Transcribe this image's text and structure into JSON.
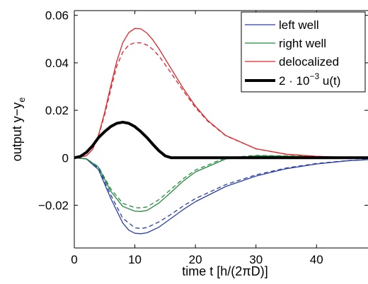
{
  "chart_data": {
    "type": "line",
    "xlabel_prefix": "time t [h/(2",
    "xlabel_pi": "π",
    "xlabel_suffix": "D)]",
    "ylabel_prefix": "output y",
    "ylabel_dash": "−",
    "ylabel_main": "y",
    "ylabel_sub": "e",
    "xlim": [
      0,
      48.5
    ],
    "ylim": [
      -0.038,
      0.062
    ],
    "xticks": [
      0,
      10,
      20,
      30,
      40
    ],
    "xtick_labels": [
      "0",
      "10",
      "20",
      "30",
      "40"
    ],
    "yticks": [
      -0.02,
      0,
      0.02,
      0.04,
      0.06
    ],
    "ytick_labels": [
      "−0.02",
      "0",
      "0.02",
      "0.04",
      "0.06"
    ],
    "grid": false,
    "legend_position": "top-right",
    "legend": {
      "left_well": "left well",
      "right_well": "right well",
      "delocalized": "delocalized",
      "control_prefix": "2 · 10",
      "control_exp": "−3",
      "control_suffix": " u(t)"
    },
    "series": [
      {
        "name": "left well",
        "color": "#2a3fa8",
        "style": "solid",
        "x": [
          0,
          2,
          4,
          6,
          8,
          9,
          10,
          11,
          12,
          14,
          16,
          18,
          20,
          25,
          30,
          35,
          40,
          45,
          48.5
        ],
        "y": [
          0,
          -0.0005,
          -0.005,
          -0.017,
          -0.0275,
          -0.0305,
          -0.0318,
          -0.032,
          -0.0316,
          -0.0292,
          -0.0255,
          -0.0218,
          -0.0185,
          -0.0121,
          -0.0077,
          -0.0046,
          -0.0026,
          -0.0013,
          -0.0008
        ]
      },
      {
        "name": "left well",
        "color": "#2a3fa8",
        "style": "dashed",
        "x": [
          0,
          2,
          4,
          6,
          8,
          10,
          11,
          12,
          14,
          16,
          18,
          20,
          25,
          30,
          35,
          40,
          45,
          48.5
        ],
        "y": [
          0,
          -0.0004,
          -0.0045,
          -0.0155,
          -0.0255,
          -0.0295,
          -0.0298,
          -0.0294,
          -0.027,
          -0.0238,
          -0.0203,
          -0.0172,
          -0.0113,
          -0.0072,
          -0.0043,
          -0.0024,
          -0.0012,
          -0.0007
        ]
      },
      {
        "name": "right well",
        "color": "#1f8a3b",
        "style": "solid",
        "x": [
          0,
          2,
          4,
          6,
          8,
          10,
          11,
          12,
          14,
          16,
          18,
          20,
          25,
          30,
          35,
          40,
          45,
          48.5
        ],
        "y": [
          0,
          -0.0004,
          -0.004,
          -0.014,
          -0.0205,
          -0.0225,
          -0.0226,
          -0.0222,
          -0.019,
          -0.0145,
          -0.0098,
          -0.006,
          -0.0005,
          0.0008,
          0.0007,
          0.0004,
          0.0002,
          0.0001
        ]
      },
      {
        "name": "right well",
        "color": "#1f8a3b",
        "style": "dashed",
        "x": [
          0,
          2,
          4,
          6,
          8,
          10,
          11,
          12,
          14,
          16,
          18,
          20,
          25,
          30,
          35,
          40,
          45,
          48.5
        ],
        "y": [
          0,
          -0.0004,
          -0.0038,
          -0.013,
          -0.0192,
          -0.021,
          -0.0211,
          -0.0207,
          -0.0176,
          -0.0132,
          -0.0088,
          -0.0052,
          0.0,
          0.001,
          0.0008,
          0.0005,
          0.0002,
          0.0001
        ]
      },
      {
        "name": "delocalized",
        "color": "#e0242a",
        "style": "solid",
        "x": [
          0,
          2,
          3,
          4,
          5,
          6,
          7,
          8,
          9,
          10,
          11,
          12,
          13,
          14,
          16,
          18,
          20,
          22,
          25,
          30,
          35,
          40,
          45,
          48.5
        ],
        "y": [
          0,
          0.0008,
          0.0035,
          0.0095,
          0.019,
          0.03,
          0.0405,
          0.0485,
          0.0527,
          0.0545,
          0.0543,
          0.0525,
          0.0496,
          0.0458,
          0.0375,
          0.0292,
          0.0218,
          0.0158,
          0.0094,
          0.0038,
          0.0015,
          0.0006,
          0.0002,
          0.0001
        ]
      },
      {
        "name": "delocalized",
        "color": "#e0242a",
        "style": "dashed",
        "x": [
          0,
          2,
          3,
          4,
          5,
          6,
          7,
          8,
          9,
          10,
          11,
          12,
          13,
          14,
          16,
          18,
          20,
          22,
          25,
          30,
          35,
          40,
          45,
          48.5
        ],
        "y": [
          0,
          0.0008,
          0.0035,
          0.0092,
          0.018,
          0.0285,
          0.0385,
          0.0445,
          0.0475,
          0.0485,
          0.0484,
          0.0475,
          0.0456,
          0.0428,
          0.0356,
          0.0282,
          0.0212,
          0.0155,
          0.0093,
          0.0038,
          0.0015,
          0.0006,
          0.0002,
          0.0001
        ]
      },
      {
        "name": "2 · 10^−3 u(t)",
        "color": "#000000",
        "style": "thick",
        "x": [
          0,
          1,
          2,
          3,
          4,
          5,
          6,
          7,
          8,
          9,
          10,
          11,
          12,
          13,
          14,
          15,
          16,
          20,
          30,
          40,
          48.5
        ],
        "y": [
          0,
          0.00058,
          0.00229,
          0.005,
          0.0085,
          0.011,
          0.0131,
          0.0145,
          0.015,
          0.0145,
          0.0131,
          0.011,
          0.0085,
          0.0056,
          0.0029,
          0.0008,
          0,
          0,
          0,
          0,
          0
        ]
      }
    ]
  }
}
